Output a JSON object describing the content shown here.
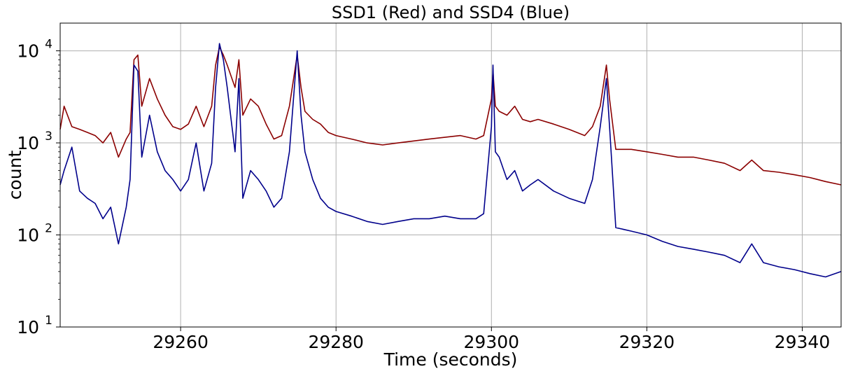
{
  "chart_data": {
    "type": "line",
    "title": "SSD1 (Red) and SSD4 (Blue)",
    "xlabel": "Time (seconds)",
    "ylabel": "count",
    "xlim": [
      29244.5,
      29345
    ],
    "ylim": [
      10,
      20000
    ],
    "yscale": "log",
    "grid": true,
    "legend": "none",
    "x_ticks": [
      {
        "value": 29260,
        "label": "29260"
      },
      {
        "value": 29280,
        "label": "29280"
      },
      {
        "value": 29300,
        "label": "29300"
      },
      {
        "value": 29320,
        "label": "29320"
      },
      {
        "value": 29340,
        "label": "29340"
      }
    ],
    "y_ticks": [
      {
        "value": 10,
        "base": "10",
        "exp": "1"
      },
      {
        "value": 100,
        "base": "10",
        "exp": "2"
      },
      {
        "value": 1000,
        "base": "10",
        "exp": "3"
      },
      {
        "value": 10000,
        "base": "10",
        "exp": "4"
      }
    ],
    "series": [
      {
        "color": "#8b0000",
        "x": [
          29244.5,
          29245,
          29246,
          29247,
          29248,
          29249,
          29250,
          29251,
          29252,
          29253,
          29253.5,
          29254,
          29254.5,
          29255,
          29256,
          29257,
          29258,
          29259,
          29260,
          29261,
          29262,
          29263,
          29264,
          29264.5,
          29265,
          29265.5,
          29266,
          29267,
          29267.5,
          29268,
          29269,
          29270,
          29271,
          29272,
          29273,
          29274,
          29275,
          29275.5,
          29276,
          29277,
          29278,
          29279,
          29280,
          29282,
          29284,
          29286,
          29288,
          29290,
          29292,
          29294,
          29296,
          29298,
          29299,
          29300,
          29300.2,
          29300.5,
          29301,
          29302,
          29303,
          29304,
          29305,
          29306,
          29308,
          29310,
          29312,
          29313,
          29314,
          29314.8,
          29315.2,
          29316,
          29318,
          29320,
          29322,
          29324,
          29326,
          29328,
          29330,
          29332,
          29333.5,
          29335,
          29337,
          29339,
          29341,
          29343,
          29345
        ],
        "values": [
          1400,
          2500,
          1500,
          1400,
          1300,
          1200,
          1000,
          1300,
          700,
          1100,
          1300,
          8000,
          9000,
          2500,
          5000,
          3000,
          2000,
          1500,
          1400,
          1600,
          2500,
          1500,
          2500,
          7000,
          11000,
          9000,
          7000,
          4000,
          8000,
          2000,
          3000,
          2500,
          1600,
          1100,
          1200,
          2500,
          9000,
          4000,
          2200,
          1800,
          1600,
          1300,
          1200,
          1100,
          1000,
          950,
          1000,
          1050,
          1100,
          1150,
          1200,
          1100,
          1200,
          3000,
          6000,
          2500,
          2200,
          2000,
          2500,
          1800,
          1700,
          1800,
          1600,
          1400,
          1200,
          1500,
          2500,
          7000,
          3000,
          850,
          850,
          800,
          750,
          700,
          700,
          650,
          600,
          500,
          650,
          500,
          480,
          450,
          420,
          380,
          350
        ]
      },
      {
        "color": "#00008b",
        "x": [
          29244.5,
          29245,
          29246,
          29247,
          29248,
          29249,
          29250,
          29251,
          29252,
          29253,
          29253.5,
          29254,
          29254.5,
          29255,
          29256,
          29257,
          29258,
          29259,
          29260,
          29261,
          29262,
          29263,
          29264,
          29264.5,
          29265,
          29265.5,
          29266,
          29267,
          29267.5,
          29268,
          29269,
          29270,
          29271,
          29272,
          29273,
          29274,
          29275,
          29275.5,
          29276,
          29277,
          29278,
          29279,
          29280,
          29282,
          29284,
          29286,
          29288,
          29290,
          29292,
          29294,
          29296,
          29298,
          29299,
          29300,
          29300.2,
          29300.5,
          29301,
          29302,
          29303,
          29304,
          29305,
          29306,
          29308,
          29310,
          29312,
          29313,
          29314,
          29314.8,
          29315.2,
          29316,
          29318,
          29320,
          29322,
          29324,
          29326,
          29328,
          29330,
          29332,
          29333.5,
          29335,
          29337,
          29339,
          29341,
          29343,
          29345
        ],
        "values": [
          350,
          500,
          900,
          300,
          250,
          220,
          150,
          200,
          80,
          200,
          400,
          7000,
          6000,
          700,
          2000,
          800,
          500,
          400,
          300,
          400,
          1000,
          300,
          600,
          4000,
          12000,
          8000,
          4000,
          800,
          5000,
          250,
          500,
          400,
          300,
          200,
          250,
          800,
          10000,
          2000,
          800,
          400,
          250,
          200,
          180,
          160,
          140,
          130,
          140,
          150,
          150,
          160,
          150,
          150,
          170,
          1500,
          7000,
          800,
          700,
          400,
          500,
          300,
          350,
          400,
          300,
          250,
          220,
          400,
          1500,
          5000,
          1500,
          120,
          110,
          100,
          85,
          75,
          70,
          65,
          60,
          50,
          80,
          50,
          45,
          42,
          38,
          35,
          40
        ]
      }
    ]
  }
}
